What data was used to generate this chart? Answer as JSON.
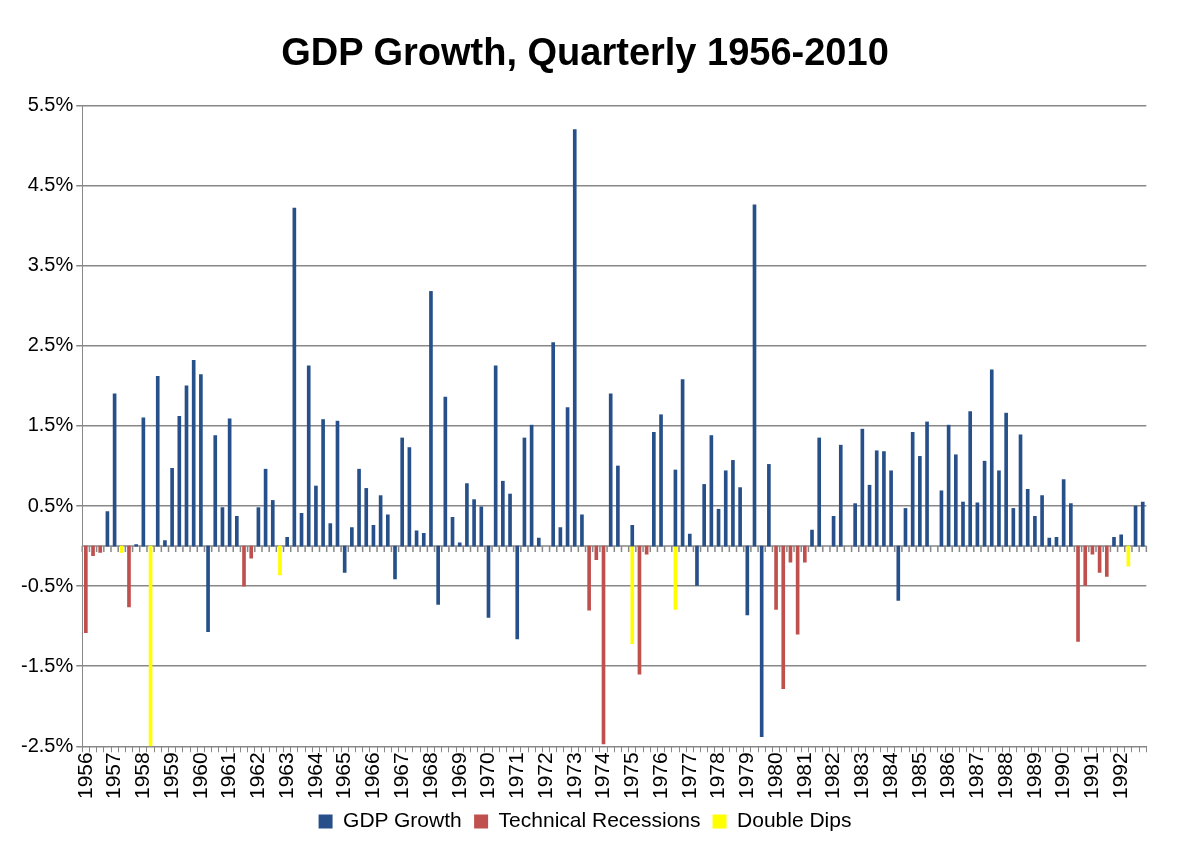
{
  "chart_data": {
    "type": "bar",
    "title": "GDP Growth, Quarterly 1956-2010",
    "categories": [
      "1956",
      null,
      null,
      null,
      "1957",
      null,
      null,
      null,
      "1958",
      null,
      null,
      null,
      "1959",
      null,
      null,
      null,
      "1960",
      null,
      null,
      null,
      "1961",
      null,
      null,
      null,
      "1962",
      null,
      null,
      null,
      "1963",
      null,
      null,
      null,
      "1964",
      null,
      null,
      null,
      "1965",
      null,
      null,
      null,
      "1966",
      null,
      null,
      null,
      "1967",
      null,
      null,
      null,
      "1968",
      null,
      null,
      null,
      "1969",
      null,
      null,
      null,
      "1970",
      null,
      null,
      null,
      "1971",
      null,
      null,
      null,
      "1972",
      null,
      null,
      null,
      "1973",
      null,
      null,
      null,
      "1974",
      null,
      null,
      null,
      "1975",
      null,
      null,
      null,
      "1976",
      null,
      null,
      null,
      "1977",
      null,
      null,
      null,
      "1978",
      null,
      null,
      null,
      "1979",
      null,
      null,
      null,
      "1980",
      null,
      null,
      null,
      "1981",
      null,
      null,
      null,
      "1982",
      null,
      null,
      null,
      "1983",
      null,
      null,
      null,
      "1984",
      null,
      null,
      null,
      "1985",
      null,
      null,
      null,
      "1986",
      null,
      null,
      null,
      "1987",
      null,
      null,
      null,
      "1988",
      null,
      null,
      null,
      "1989",
      null,
      null,
      null,
      "1990",
      null,
      null,
      null,
      "1991",
      null,
      null,
      null,
      "1992",
      null,
      null,
      null
    ],
    "series": [
      {
        "name": "GDP Growth",
        "color": "#27508a",
        "values": [
          null,
          null,
          null,
          0.43,
          1.9,
          null,
          null,
          0.02,
          1.6,
          null,
          2.12,
          0.07,
          0.97,
          1.62,
          2.0,
          2.32,
          2.14,
          -1.07,
          1.38,
          0.48,
          1.59,
          0.37,
          null,
          null,
          0.48,
          0.96,
          0.57,
          null,
          0.11,
          4.22,
          0.41,
          2.25,
          0.75,
          1.58,
          0.28,
          1.56,
          -0.33,
          0.23,
          0.96,
          0.72,
          0.26,
          0.63,
          0.39,
          -0.41,
          1.35,
          1.23,
          0.19,
          0.16,
          3.18,
          -0.73,
          1.86,
          0.36,
          0.04,
          0.78,
          0.58,
          0.49,
          -0.89,
          2.25,
          0.81,
          0.65,
          -1.16,
          1.35,
          1.51,
          0.1,
          null,
          2.54,
          0.23,
          1.73,
          5.2,
          0.39,
          null,
          null,
          null,
          1.9,
          1.0,
          null,
          0.26,
          null,
          null,
          1.42,
          1.64,
          null,
          0.95,
          2.08,
          0.15,
          -0.49,
          0.77,
          1.38,
          0.46,
          0.94,
          1.07,
          0.73,
          -0.86,
          4.26,
          -2.38,
          1.02,
          null,
          null,
          null,
          null,
          null,
          0.2,
          1.35,
          null,
          0.37,
          1.26,
          null,
          0.53,
          1.46,
          0.76,
          1.19,
          1.18,
          0.94,
          -0.68,
          0.47,
          1.42,
          1.12,
          1.55,
          null,
          0.69,
          1.51,
          1.14,
          0.55,
          1.68,
          0.54,
          1.06,
          2.2,
          0.94,
          1.66,
          0.47,
          1.39,
          0.71,
          0.37,
          0.63,
          0.1,
          0.11,
          0.83,
          0.53,
          null,
          null,
          null,
          null,
          null,
          0.11,
          0.14,
          null,
          0.5,
          0.55
        ]
      },
      {
        "name": "Technical Recessions",
        "color": "#c0504d",
        "values": [
          -1.08,
          -0.12,
          -0.08,
          null,
          null,
          null,
          -0.76,
          null,
          null,
          null,
          null,
          null,
          null,
          null,
          null,
          null,
          null,
          null,
          null,
          null,
          null,
          null,
          -0.5,
          -0.15,
          null,
          null,
          null,
          null,
          null,
          null,
          null,
          null,
          null,
          null,
          null,
          null,
          null,
          null,
          null,
          null,
          null,
          null,
          null,
          null,
          null,
          null,
          null,
          null,
          null,
          null,
          null,
          null,
          null,
          null,
          null,
          null,
          null,
          null,
          null,
          null,
          null,
          null,
          null,
          null,
          null,
          null,
          null,
          null,
          null,
          null,
          -0.8,
          -0.17,
          -2.47,
          null,
          null,
          null,
          null,
          -1.6,
          -0.1,
          null,
          null,
          null,
          null,
          null,
          null,
          null,
          null,
          null,
          null,
          null,
          null,
          null,
          null,
          null,
          null,
          null,
          -0.79,
          -1.78,
          -0.2,
          -1.1,
          -0.2,
          null,
          null,
          null,
          null,
          null,
          null,
          null,
          null,
          null,
          null,
          null,
          null,
          null,
          null,
          null,
          null,
          null,
          null,
          null,
          null,
          null,
          null,
          null,
          null,
          null,
          null,
          null,
          null,
          null,
          null,
          null,
          null,
          null,
          null,
          null,
          null,
          null,
          -1.19,
          -0.49,
          -0.1,
          -0.33,
          -0.38,
          null,
          null,
          null,
          null,
          null
        ]
      },
      {
        "name": "Double Dips",
        "color": "#ffff00",
        "values": [
          null,
          null,
          null,
          null,
          null,
          -0.08,
          null,
          null,
          null,
          -2.5,
          null,
          null,
          null,
          null,
          null,
          null,
          null,
          null,
          null,
          null,
          null,
          null,
          null,
          null,
          null,
          null,
          null,
          -0.36,
          null,
          null,
          null,
          null,
          null,
          null,
          null,
          null,
          null,
          null,
          null,
          null,
          null,
          null,
          null,
          null,
          null,
          null,
          null,
          null,
          null,
          null,
          null,
          null,
          null,
          null,
          null,
          null,
          null,
          null,
          null,
          null,
          null,
          null,
          null,
          null,
          null,
          null,
          null,
          null,
          null,
          null,
          null,
          null,
          null,
          null,
          null,
          null,
          -1.22,
          null,
          null,
          null,
          null,
          null,
          -0.79,
          null,
          null,
          null,
          null,
          null,
          null,
          null,
          null,
          null,
          null,
          null,
          null,
          null,
          null,
          null,
          null,
          null,
          null,
          null,
          null,
          null,
          null,
          null,
          null,
          null,
          null,
          null,
          null,
          null,
          null,
          null,
          null,
          null,
          null,
          null,
          null,
          null,
          null,
          null,
          null,
          null,
          null,
          null,
          null,
          null,
          null,
          null,
          null,
          null,
          null,
          null,
          null,
          null,
          null,
          null,
          null,
          null,
          null,
          null,
          null,
          null,
          null,
          -0.25,
          null,
          null
        ]
      }
    ],
    "stacked": true,
    "ylim": [
      -2.5,
      5.5
    ],
    "yticks": [
      {
        "value": -2.5,
        "label": "-2.5%"
      },
      {
        "value": -1.5,
        "label": "-1.5%"
      },
      {
        "value": -0.5,
        "label": "-0.5%"
      },
      {
        "value": 0.5,
        "label": "0.5%"
      },
      {
        "value": 1.5,
        "label": "1.5%"
      },
      {
        "value": 2.5,
        "label": "2.5%"
      },
      {
        "value": 3.5,
        "label": "3.5%"
      },
      {
        "value": 4.5,
        "label": "4.5%"
      },
      {
        "value": 5.5,
        "label": "5.5%"
      }
    ],
    "grid": "y",
    "legend": "bottom"
  }
}
